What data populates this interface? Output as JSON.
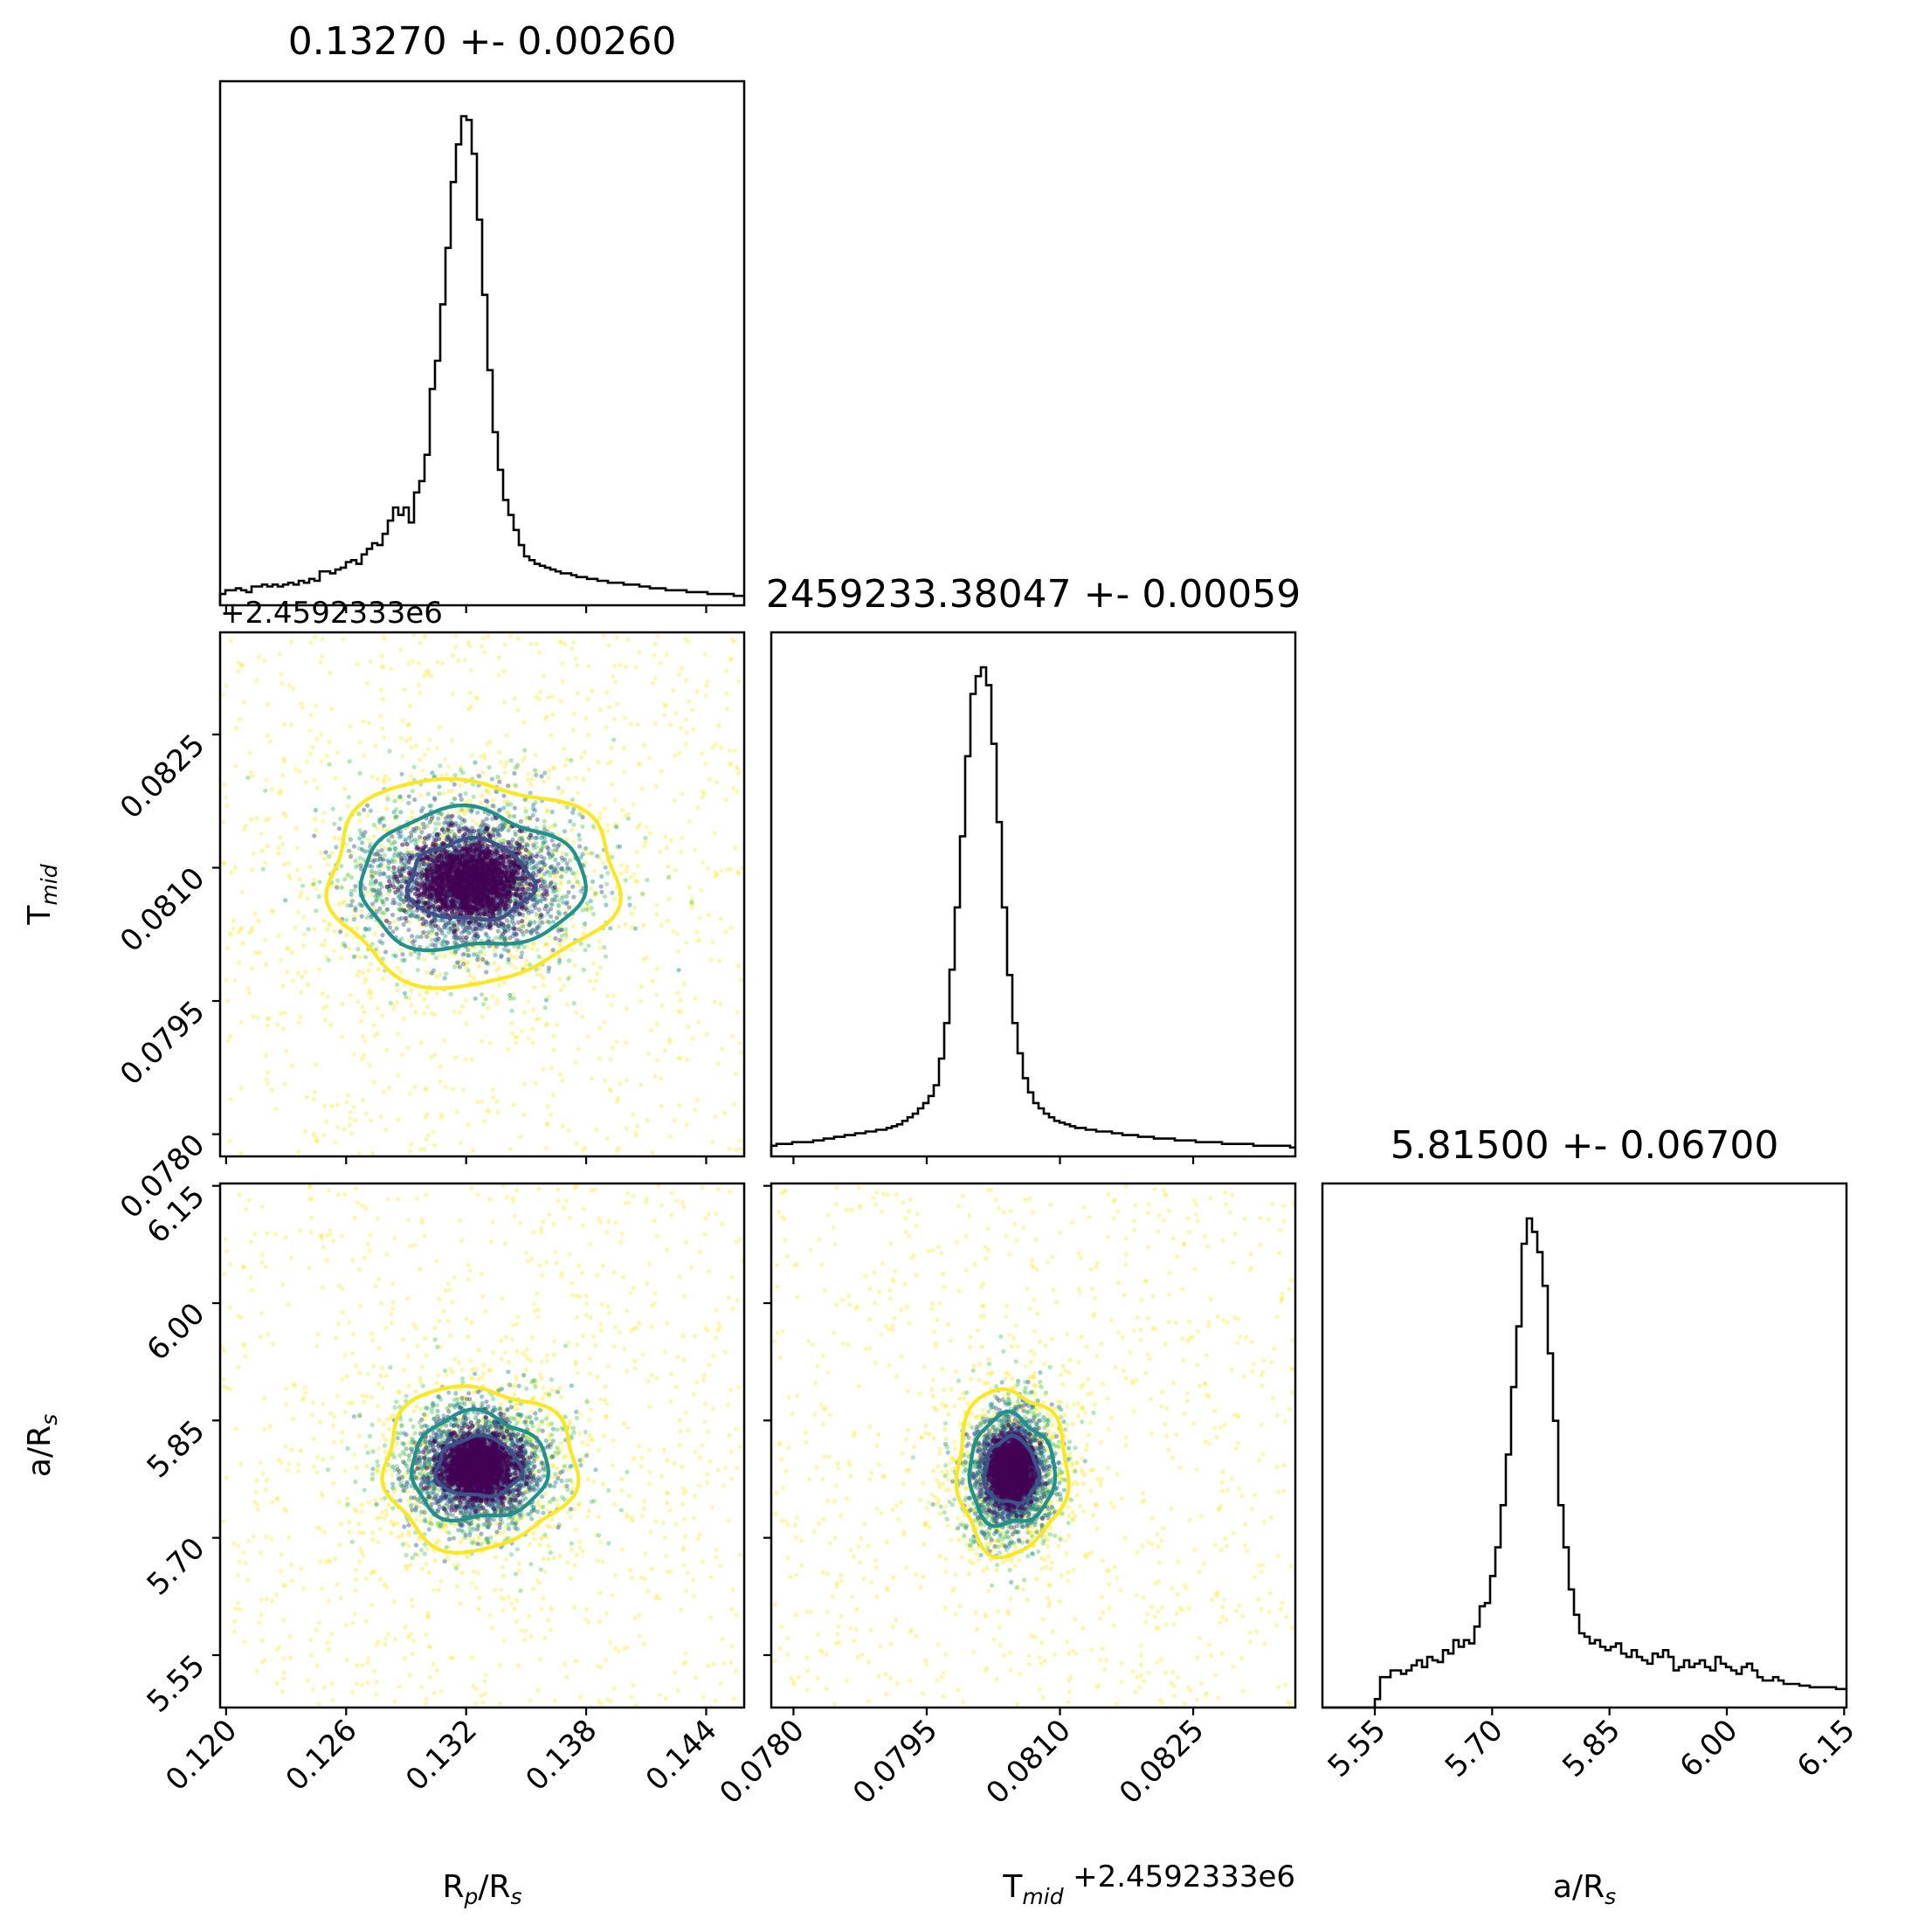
{
  "chart_data": [
    {
      "type": "histogram",
      "variable": "R_p/R_s",
      "title": "0.13270 +- 0.00260",
      "xlim": [
        0.1197,
        0.1459
      ],
      "bins": 100,
      "peak": 0.1327,
      "counts": [
        6,
        8,
        8,
        9,
        8,
        7,
        10,
        10,
        11,
        10,
        11,
        10,
        11,
        12,
        11,
        13,
        12,
        14,
        13,
        18,
        18,
        17,
        19,
        20,
        23,
        24,
        22,
        27,
        30,
        33,
        32,
        38,
        45,
        52,
        48,
        52,
        44,
        60,
        66,
        80,
        115,
        130,
        160,
        190,
        225,
        245,
        260,
        258,
        240,
        205,
        165,
        125,
        92,
        72,
        56,
        48,
        40,
        32,
        26,
        24,
        22,
        21,
        20,
        19,
        18,
        17,
        17,
        16,
        15,
        15,
        14,
        14,
        13,
        13,
        12,
        12,
        12,
        11,
        11,
        11,
        10,
        10,
        9,
        9,
        9,
        8,
        8,
        8,
        8,
        7,
        7,
        7,
        7,
        6,
        6,
        6,
        6,
        6,
        5,
        5
      ],
      "xticks": [
        "0.120",
        "0.126",
        "0.132",
        "0.138",
        "0.144"
      ],
      "xlabel": "R$_p$/R$_s$"
    },
    {
      "type": "scatter-contour",
      "x_variable": "R_p/R_s",
      "y_variable": "T_mid",
      "xlim": [
        0.1197,
        0.1459
      ],
      "ylim": [
        0.07775,
        0.08365
      ],
      "center": [
        0.1322,
        0.08085
      ],
      "contour_levels": [
        {
          "color": "#3b528b",
          "half_widths": [
            0.0031,
            0.00045
          ]
        },
        {
          "color": "#21918c",
          "half_widths": [
            0.0056,
            0.00078
          ]
        },
        {
          "color": "#fde725",
          "half_widths": [
            0.0072,
            0.00115
          ]
        }
      ],
      "point_colors": [
        "#440154",
        "#3b528b",
        "#21918c",
        "#5ec962",
        "#fde725"
      ],
      "yticks": [
        "0.0780",
        "0.0795",
        "0.0810",
        "0.0825"
      ],
      "yoffset": "+2.4592333e6",
      "ylabel": "T$_{mid}$"
    },
    {
      "type": "histogram",
      "variable": "T_mid",
      "title": "2459233.38047 +- 0.00059",
      "xlim": [
        0.07775,
        0.08365
      ],
      "bins": 100,
      "peak": 0.08047,
      "counts": [
        6,
        7,
        7,
        7,
        8,
        8,
        8,
        8,
        9,
        9,
        10,
        10,
        11,
        11,
        12,
        12,
        13,
        13,
        14,
        14,
        15,
        15,
        16,
        17,
        18,
        20,
        22,
        24,
        27,
        30,
        34,
        40,
        55,
        75,
        105,
        140,
        180,
        225,
        260,
        270,
        275,
        265,
        232,
        188,
        140,
        102,
        75,
        58,
        44,
        36,
        30,
        27,
        24,
        22,
        20,
        19,
        18,
        17,
        16,
        16,
        15,
        15,
        14,
        14,
        14,
        13,
        13,
        12,
        12,
        12,
        11,
        11,
        11,
        10,
        10,
        10,
        10,
        9,
        9,
        9,
        9,
        8,
        8,
        8,
        8,
        8,
        7,
        7,
        7,
        7,
        7,
        7,
        6,
        6,
        6,
        6,
        6,
        6,
        6,
        5
      ],
      "xticks": [
        "0.0780",
        "0.0795",
        "0.0810",
        "0.0825"
      ],
      "xoffset": "+2.4592333e6",
      "xlabel": "T$_{mid}$"
    },
    {
      "type": "scatter-contour",
      "x_variable": "R_p/R_s",
      "y_variable": "a/R_s",
      "xlim": [
        0.1197,
        0.1459
      ],
      "ylim": [
        5.483,
        6.153
      ],
      "center": [
        0.1326,
        5.79
      ],
      "contour_levels": [
        {
          "color": "#3b528b",
          "half_widths": [
            0.0021,
            0.038
          ]
        },
        {
          "color": "#21918c",
          "half_widths": [
            0.0034,
            0.068
          ]
        },
        {
          "color": "#fde725",
          "half_widths": [
            0.0048,
            0.104
          ]
        }
      ],
      "point_colors": [
        "#440154",
        "#3b528b",
        "#21918c",
        "#5ec962",
        "#fde725"
      ],
      "yticks": [
        "5.55",
        "5.70",
        "5.85",
        "6.00",
        "6.15"
      ],
      "ylabel": "a/R$_s$"
    },
    {
      "type": "scatter-contour",
      "x_variable": "T_mid",
      "y_variable": "a/R_s",
      "xlim": [
        0.07775,
        0.08365
      ],
      "ylim": [
        5.483,
        6.153
      ],
      "center": [
        0.08045,
        5.785
      ],
      "contour_levels": [
        {
          "color": "#3b528b",
          "half_widths": [
            0.0003,
            0.042
          ]
        },
        {
          "color": "#21918c",
          "half_widths": [
            0.00048,
            0.07
          ]
        },
        {
          "color": "#fde725",
          "half_widths": [
            0.00062,
            0.105
          ]
        }
      ],
      "point_colors": [
        "#440154",
        "#3b528b",
        "#21918c",
        "#5ec962",
        "#fde725"
      ]
    },
    {
      "type": "histogram",
      "variable": "a/R_s",
      "title": "5.81500 +- 0.06700",
      "xlim": [
        5.483,
        6.153
      ],
      "bins": 100,
      "peak": 5.785,
      "counts": [
        0,
        0,
        0,
        0,
        0,
        0,
        0,
        0,
        0,
        0,
        5,
        18,
        18,
        22,
        22,
        20,
        22,
        25,
        28,
        24,
        30,
        28,
        27,
        34,
        32,
        40,
        36,
        40,
        38,
        48,
        60,
        62,
        78,
        95,
        120,
        150,
        190,
        226,
        275,
        290,
        282,
        270,
        250,
        210,
        170,
        120,
        95,
        70,
        55,
        44,
        42,
        38,
        40,
        36,
        34,
        36,
        38,
        32,
        30,
        34,
        30,
        28,
        26,
        32,
        30,
        34,
        30,
        22,
        24,
        28,
        24,
        26,
        28,
        24,
        22,
        30,
        26,
        24,
        22,
        20,
        24,
        26,
        22,
        18,
        16,
        16,
        18,
        16,
        14,
        14,
        14,
        13,
        13,
        12,
        12,
        12,
        12,
        12,
        11,
        11
      ],
      "xticks": [
        "5.55",
        "5.70",
        "5.85",
        "6.00",
        "6.15"
      ],
      "xlabel": "a/R$_s$"
    }
  ]
}
